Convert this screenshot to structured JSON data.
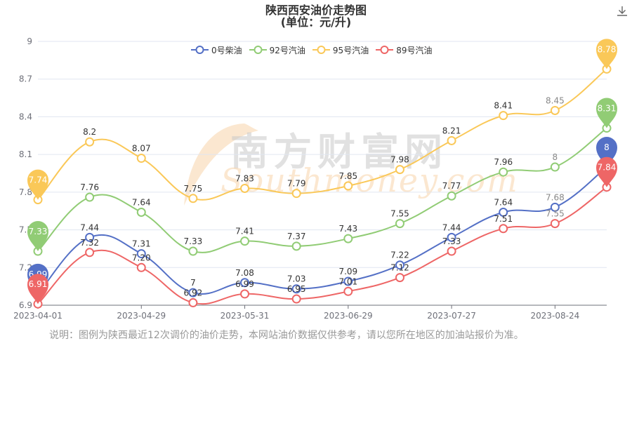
{
  "title_line1": "陕西西安油价走势图",
  "title_line2": "(单位：元/升)",
  "download_icon": "download-icon",
  "watermark": {
    "cn": "南方财富网",
    "en": "Southmoney.com"
  },
  "note": "说明：图例为陕西最近12次调价的油价走势，本网站油价数据仅供参考，请以您所在地区的加油站报价为准。",
  "chart_data": {
    "type": "line",
    "title": "陕西西安油价走势图",
    "subtitle": "(单位：元/升)",
    "ylim": [
      6.9,
      9
    ],
    "yticks": [
      "6.9",
      "7.2",
      "7.5",
      "7.8",
      "8.1",
      "8.4",
      "8.7",
      "9"
    ],
    "xticks": [
      "2023-04-01",
      "2023-04-29",
      "2023-05-31",
      "2023-06-29",
      "2023-07-27",
      "2023-08-24"
    ],
    "x": [
      "2023-04-01",
      "2023-04-15",
      "2023-04-29",
      "2023-05-17",
      "2023-05-31",
      "2023-06-14",
      "2023-06-29",
      "2023-07-13",
      "2023-07-27",
      "2023-08-10",
      "2023-08-24",
      "2023-09-07"
    ],
    "legend_position": "top",
    "grid": true,
    "series": [
      {
        "name": "0号柴油",
        "color": "#5470c6",
        "values": [
          6.99,
          7.44,
          7.31,
          7.0,
          7.08,
          7.03,
          7.09,
          7.22,
          7.44,
          7.64,
          7.68,
          8.0
        ]
      },
      {
        "name": "92号汽油",
        "color": "#91cc75",
        "values": [
          7.33,
          7.76,
          7.64,
          7.33,
          7.41,
          7.37,
          7.43,
          7.55,
          7.77,
          7.96,
          8.0,
          8.31
        ]
      },
      {
        "name": "95号汽油",
        "color": "#fac858",
        "values": [
          7.74,
          8.2,
          8.07,
          7.75,
          7.83,
          7.79,
          7.85,
          7.98,
          8.21,
          8.41,
          8.45,
          8.78
        ]
      },
      {
        "name": "89号汽油",
        "color": "#ee6666",
        "values": [
          6.91,
          7.32,
          7.2,
          6.92,
          6.99,
          6.95,
          7.01,
          7.12,
          7.33,
          7.51,
          7.55,
          7.84
        ]
      }
    ],
    "data_labels": {
      "0号柴油": [
        "6.99",
        "7.44",
        "7.31",
        "7",
        "7.08",
        "7.03",
        "7.09",
        "7.22",
        "7.44",
        "7.64",
        "7.68",
        "8"
      ],
      "92号汽油": [
        "7.33",
        "7.76",
        "7.64",
        "7.33",
        "7.41",
        "7.37",
        "7.43",
        "7.55",
        "7.77",
        "7.96",
        "8",
        "8.31"
      ],
      "95号汽油": [
        "7.74",
        "8.2",
        "8.07",
        "7.75",
        "7.83",
        "7.79",
        "7.85",
        "7.98",
        "8.21",
        "8.41",
        "8.45",
        "8.78"
      ],
      "89号汽油": [
        "6.91",
        "7.32",
        "7.20",
        "6.92",
        "6.99",
        "6.95",
        "7.01",
        "7.12",
        "7.33",
        "7.51",
        "7.55",
        "7.84"
      ]
    },
    "markpoints": {
      "max": {
        "0号柴油": "8",
        "92号汽油": "8.31",
        "95号汽油": "8.78",
        "89号汽油": "7.84"
      },
      "min": {
        "0号柴油": "6.99",
        "92号汽油": "7.33",
        "95号汽油": "7.74",
        "89号汽油": "6.91"
      }
    }
  }
}
